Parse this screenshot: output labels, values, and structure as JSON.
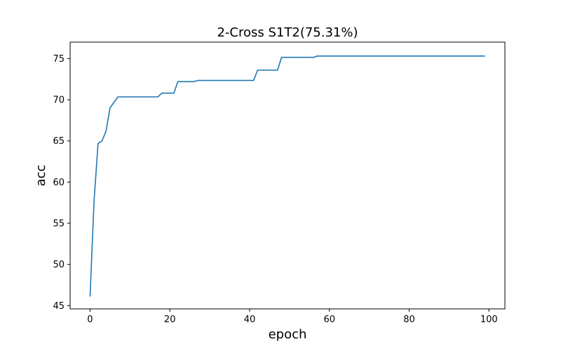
{
  "chart_data": {
    "type": "line",
    "title": "2-Cross S1T2(75.31%)",
    "xlabel": "epoch",
    "ylabel": "acc",
    "xlim": [
      -5,
      104
    ],
    "ylim": [
      44.6,
      77.0
    ],
    "xticks": [
      0,
      20,
      40,
      60,
      80,
      100
    ],
    "yticks": [
      45,
      50,
      55,
      60,
      65,
      70,
      75
    ],
    "grid": false,
    "line_color": "#1f77b4",
    "series": [
      {
        "x": [
          0,
          1,
          2,
          3,
          4,
          5,
          6,
          7,
          8,
          9,
          10,
          11,
          12,
          13,
          14,
          15,
          16,
          17,
          18,
          19,
          20,
          21,
          22,
          23,
          24,
          25,
          26,
          27,
          28,
          29,
          30,
          31,
          32,
          33,
          34,
          35,
          36,
          37,
          38,
          39,
          40,
          41,
          42,
          43,
          44,
          45,
          46,
          47,
          48,
          49,
          50,
          51,
          52,
          53,
          54,
          55,
          56,
          57,
          58,
          59,
          60,
          61,
          62,
          63,
          64,
          65,
          66,
          67,
          68,
          69,
          70,
          71,
          72,
          73,
          74,
          75,
          76,
          77,
          78,
          79,
          80,
          81,
          82,
          83,
          84,
          85,
          86,
          87,
          88,
          89,
          90,
          91,
          92,
          93,
          94,
          95,
          96,
          97,
          98,
          99
        ],
        "values": [
          46.1,
          57.7,
          64.7,
          65.0,
          66.2,
          69.0,
          69.7,
          70.35,
          70.35,
          70.35,
          70.35,
          70.35,
          70.35,
          70.35,
          70.35,
          70.35,
          70.35,
          70.35,
          70.8,
          70.8,
          70.8,
          70.8,
          72.2,
          72.2,
          72.2,
          72.2,
          72.2,
          72.35,
          72.35,
          72.35,
          72.35,
          72.35,
          72.35,
          72.35,
          72.35,
          72.35,
          72.35,
          72.35,
          72.35,
          72.35,
          72.35,
          72.35,
          73.6,
          73.6,
          73.6,
          73.6,
          73.6,
          73.6,
          75.15,
          75.15,
          75.15,
          75.15,
          75.15,
          75.15,
          75.15,
          75.15,
          75.15,
          75.31,
          75.31,
          75.31,
          75.31,
          75.31,
          75.31,
          75.31,
          75.31,
          75.31,
          75.31,
          75.31,
          75.31,
          75.31,
          75.31,
          75.31,
          75.31,
          75.31,
          75.31,
          75.31,
          75.31,
          75.31,
          75.31,
          75.31,
          75.31,
          75.31,
          75.31,
          75.31,
          75.31,
          75.31,
          75.31,
          75.31,
          75.31,
          75.31,
          75.31,
          75.31,
          75.31,
          75.31,
          75.31,
          75.31,
          75.31,
          75.31,
          75.31,
          75.31
        ]
      }
    ]
  }
}
